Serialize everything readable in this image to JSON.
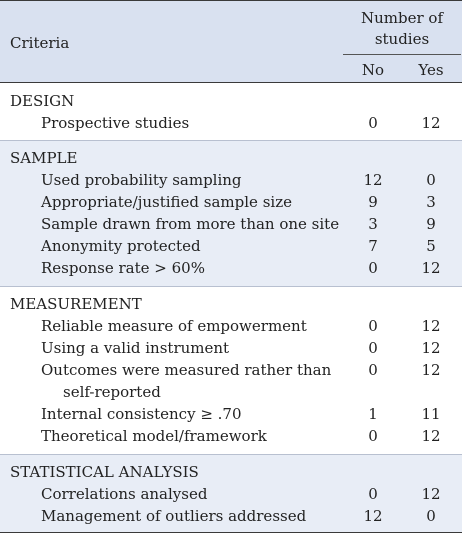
{
  "header": {
    "criteria": "Criteria",
    "group_line1": "Number of",
    "group_line2": "studies",
    "no": "No",
    "yes": "Yes"
  },
  "sections": [
    {
      "title": "DESIGN",
      "rows": [
        {
          "label": "Prospective studies",
          "no": "0",
          "yes": "12"
        }
      ]
    },
    {
      "title": "SAMPLE",
      "rows": [
        {
          "label": "Used probability sampling",
          "no": "12",
          "yes": "0"
        },
        {
          "label": "Appropriate/justified sample size",
          "no": "9",
          "yes": "3"
        },
        {
          "label": "Sample drawn from more than one site",
          "no": "3",
          "yes": "9"
        },
        {
          "label": "Anonymity protected",
          "no": "7",
          "yes": "5"
        },
        {
          "label": "Response rate > 60%",
          "no": "0",
          "yes": "12"
        }
      ]
    },
    {
      "title": "MEASUREMENT",
      "rows": [
        {
          "label": "Reliable measure of empowerment",
          "no": "0",
          "yes": "12"
        },
        {
          "label": "Using a valid instrument",
          "no": "0",
          "yes": "12"
        },
        {
          "label": "Outcomes were measured rather than",
          "label2": "self-reported",
          "no": "0",
          "yes": "12"
        },
        {
          "label": "Internal consistency ≥ .70",
          "no": "1",
          "yes": "11"
        },
        {
          "label": "Theoretical model/framework",
          "no": "0",
          "yes": "12"
        }
      ]
    },
    {
      "title": "STATISTICAL ANALYSIS",
      "rows": [
        {
          "label": "Correlations analysed",
          "no": "0",
          "yes": "12"
        },
        {
          "label": "Management of outliers addressed",
          "no": "12",
          "yes": "0"
        }
      ]
    }
  ],
  "colors": {
    "header_bg": "#d9e1f0",
    "shade_bg": "#e8edf6",
    "text": "#222222"
  }
}
